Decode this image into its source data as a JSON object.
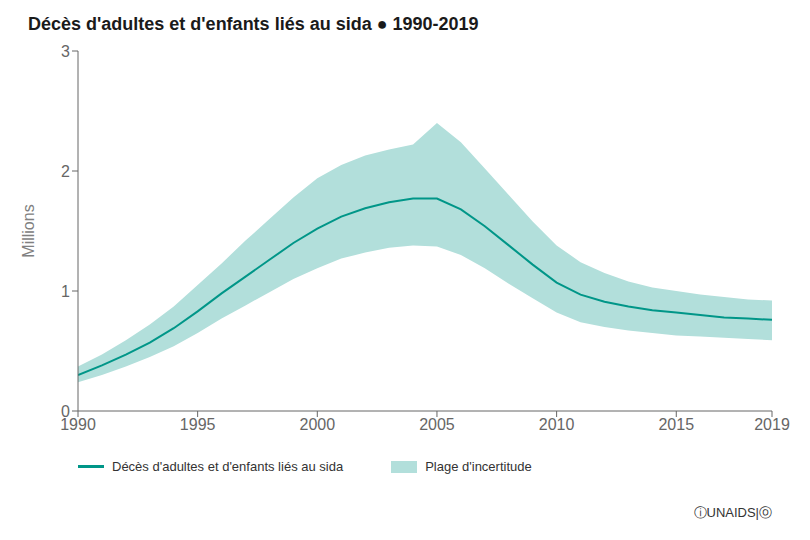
{
  "chart_data": {
    "type": "line",
    "title": "Décès d'adultes et d'enfants liés au sida ● 1990-2019",
    "y_label": "Millions",
    "x": [
      1990,
      1991,
      1992,
      1993,
      1994,
      1995,
      1996,
      1997,
      1998,
      1999,
      2000,
      2001,
      2002,
      2003,
      2004,
      2005,
      2006,
      2007,
      2008,
      2009,
      2010,
      2011,
      2012,
      2013,
      2014,
      2015,
      2016,
      2017,
      2018,
      2019
    ],
    "series": [
      {
        "name": "Décès d'adultes et d'enfants liés au sida",
        "color": "#009688",
        "values": [
          0.3,
          0.38,
          0.47,
          0.57,
          0.69,
          0.83,
          0.98,
          1.12,
          1.26,
          1.4,
          1.52,
          1.62,
          1.69,
          1.74,
          1.77,
          1.77,
          1.68,
          1.54,
          1.38,
          1.22,
          1.07,
          0.97,
          0.91,
          0.87,
          0.84,
          0.82,
          0.8,
          0.78,
          0.77,
          0.76
        ]
      }
    ],
    "band": {
      "name": "Plage d'incertitude",
      "color": "#b2dfdb",
      "lower": [
        0.24,
        0.3,
        0.37,
        0.45,
        0.54,
        0.65,
        0.77,
        0.88,
        0.99,
        1.1,
        1.19,
        1.27,
        1.32,
        1.36,
        1.38,
        1.37,
        1.3,
        1.19,
        1.06,
        0.94,
        0.82,
        0.74,
        0.7,
        0.67,
        0.65,
        0.63,
        0.62,
        0.61,
        0.6,
        0.59
      ],
      "upper": [
        0.37,
        0.47,
        0.59,
        0.72,
        0.87,
        1.05,
        1.23,
        1.42,
        1.6,
        1.78,
        1.94,
        2.05,
        2.13,
        2.18,
        2.22,
        2.4,
        2.24,
        2.02,
        1.8,
        1.58,
        1.38,
        1.24,
        1.15,
        1.08,
        1.03,
        1.0,
        0.97,
        0.95,
        0.93,
        0.92
      ]
    },
    "xlim": [
      1990,
      2019
    ],
    "xticks": [
      1990,
      1995,
      2000,
      2005,
      2010,
      2015,
      2019
    ],
    "ylim": [
      0,
      3
    ],
    "yticks": [
      0,
      1,
      2,
      3
    ],
    "grid": false,
    "legend": "bottom",
    "annotations": [
      "ⓘUNAIDS|ⓞ"
    ]
  }
}
